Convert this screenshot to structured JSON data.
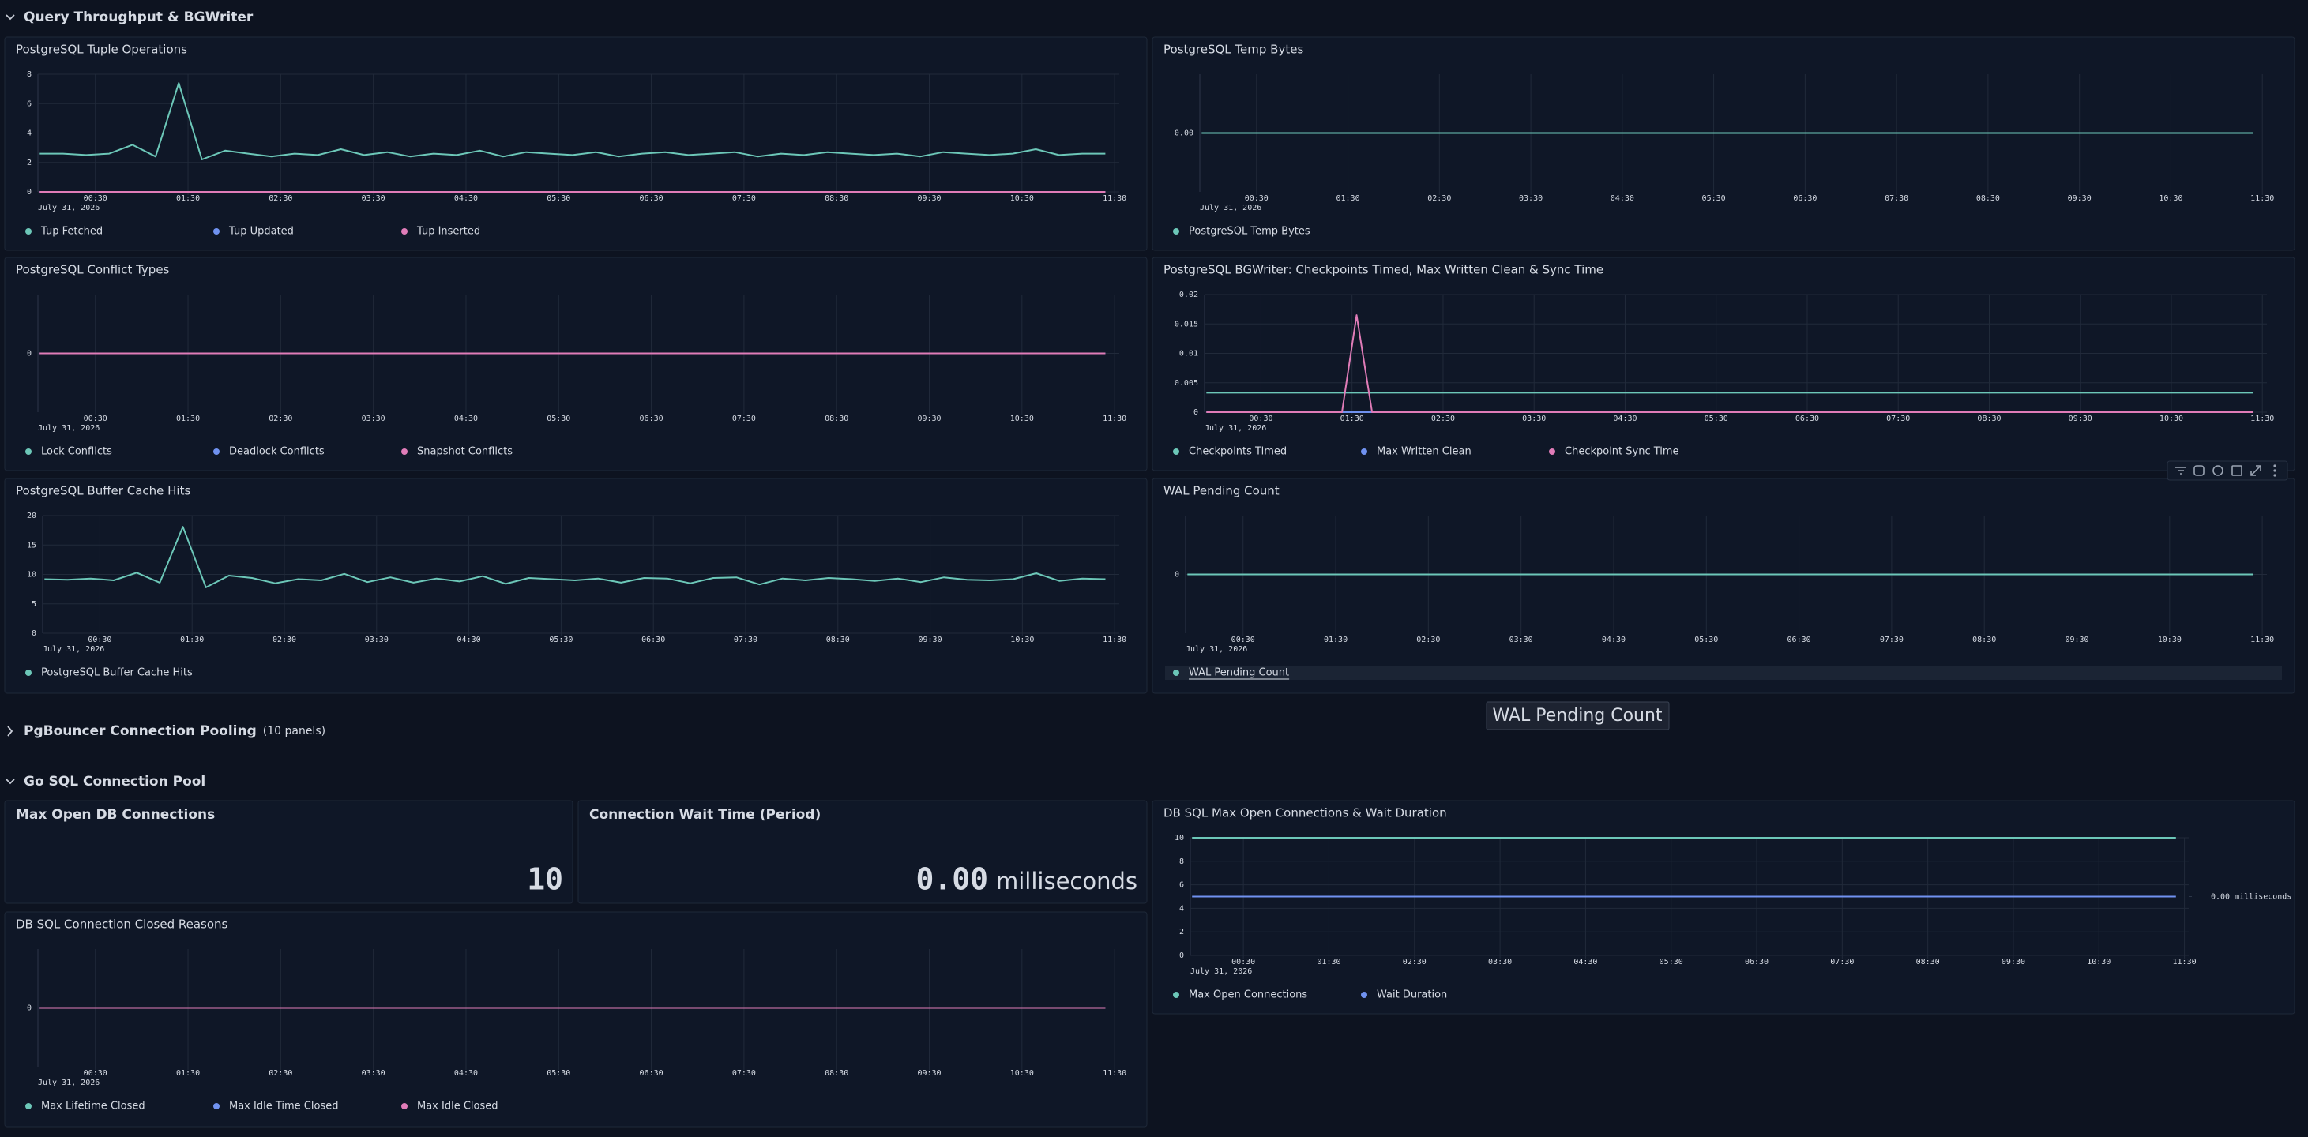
{
  "time_axis": {
    "xlim": [
      -0.12,
      11.55
    ],
    "xticks": [
      {
        "value": 0.5,
        "label": "00:30"
      },
      {
        "value": 1.5,
        "label": "01:30"
      },
      {
        "value": 2.5,
        "label": "02:30"
      },
      {
        "value": 3.5,
        "label": "03:30"
      },
      {
        "value": 4.5,
        "label": "04:30"
      },
      {
        "value": 5.5,
        "label": "05:30"
      },
      {
        "value": 6.5,
        "label": "06:30"
      },
      {
        "value": 7.5,
        "label": "07:30"
      },
      {
        "value": 8.5,
        "label": "08:30"
      },
      {
        "value": 9.5,
        "label": "09:30"
      },
      {
        "value": 10.5,
        "label": "10:30"
      },
      {
        "value": 11.5,
        "label": "11:30"
      }
    ],
    "date": "July 31, 2026"
  },
  "sections": [
    {
      "title": "Query Throughput & BGWriter",
      "expanded": true,
      "panels": [
        {
          "type": "timeseries",
          "title": "PostgreSQL Tuple Operations",
          "ylim": [
            0,
            8
          ],
          "yticks": [
            0,
            2,
            4,
            6,
            8
          ],
          "series": [
            {
              "name": "Tup Fetched",
              "color": "#6cc7b8",
              "x": [
                -0.1,
                0.15,
                0.4,
                0.65,
                0.9,
                1.15,
                1.4,
                1.65,
                1.9,
                2.15,
                2.4,
                2.65,
                2.9,
                3.15,
                3.4,
                3.65,
                3.9,
                4.15,
                4.4,
                4.65,
                4.9,
                5.15,
                5.4,
                5.65,
                5.9,
                6.15,
                6.4,
                6.65,
                6.9,
                7.15,
                7.4,
                7.65,
                7.9,
                8.15,
                8.4,
                8.65,
                8.9,
                9.15,
                9.4,
                9.65,
                9.9,
                10.15,
                10.4,
                10.65,
                10.9,
                11.15,
                11.4
              ],
              "values": [
                2.6,
                2.6,
                2.5,
                2.6,
                3.2,
                2.4,
                7.4,
                2.2,
                2.8,
                2.6,
                2.4,
                2.6,
                2.5,
                2.9,
                2.5,
                2.7,
                2.4,
                2.6,
                2.5,
                2.8,
                2.4,
                2.7,
                2.6,
                2.5,
                2.7,
                2.4,
                2.6,
                2.7,
                2.5,
                2.6,
                2.7,
                2.4,
                2.6,
                2.5,
                2.7,
                2.6,
                2.5,
                2.6,
                2.4,
                2.7,
                2.6,
                2.5,
                2.6,
                2.9,
                2.5,
                2.6,
                2.6
              ]
            },
            {
              "name": "Tup Updated",
              "color": "#7092f0",
              "x": [
                -0.1,
                11.4
              ],
              "values": [
                0,
                0
              ]
            },
            {
              "name": "Tup Inserted",
              "color": "#e07cb8",
              "x": [
                -0.1,
                11.4
              ],
              "values": [
                0,
                0
              ]
            }
          ]
        },
        {
          "type": "timeseries",
          "title": "PostgreSQL Temp Bytes",
          "ylim": [
            -1,
            1
          ],
          "yticks": [
            {
              "value": 0,
              "label": "0.00"
            }
          ],
          "series": [
            {
              "name": "PostgreSQL Temp Bytes",
              "color": "#6cc7b8",
              "x": [
                -0.1,
                11.4
              ],
              "values": [
                0,
                0
              ]
            }
          ]
        },
        {
          "type": "timeseries",
          "title": "PostgreSQL Conflict Types",
          "ylim": [
            -1,
            1
          ],
          "yticks": [
            0
          ],
          "series": [
            {
              "name": "Lock Conflicts",
              "color": "#6cc7b8",
              "x": [
                -0.1,
                11.4
              ],
              "values": [
                0,
                0
              ]
            },
            {
              "name": "Deadlock Conflicts",
              "color": "#7092f0",
              "x": [
                -0.1,
                11.4
              ],
              "values": [
                0,
                0
              ]
            },
            {
              "name": "Snapshot Conflicts",
              "color": "#e07cb8",
              "x": [
                -0.1,
                11.4
              ],
              "values": [
                0,
                0
              ]
            }
          ]
        },
        {
          "type": "timeseries",
          "title": "PostgreSQL BGWriter: Checkpoints Timed, Max Written Clean & Sync Time",
          "ylim": [
            0,
            0.02
          ],
          "yticks": [
            0,
            0.005,
            0.01,
            0.015,
            0.02
          ],
          "series": [
            {
              "name": "Checkpoints Timed",
              "color": "#6cc7b8",
              "x": [
                -0.1,
                11.4
              ],
              "values": [
                0.0033,
                0.0033
              ]
            },
            {
              "name": "Max Written Clean",
              "color": "#7092f0",
              "x": [
                -0.1,
                11.4
              ],
              "values": [
                0,
                0
              ]
            },
            {
              "name": "Checkpoint Sync Time",
              "color": "#e07cb8",
              "x": [
                -0.1,
                1.39,
                1.55,
                1.72,
                11.4
              ],
              "values": [
                0,
                0,
                0.0165,
                0,
                0
              ]
            }
          ]
        },
        {
          "type": "timeseries",
          "title": "PostgreSQL Buffer Cache Hits",
          "ylim": [
            0,
            20
          ],
          "yticks": [
            0,
            5,
            10,
            15,
            20
          ],
          "series": [
            {
              "name": "PostgreSQL Buffer Cache Hits",
              "color": "#6cc7b8",
              "x": [
                -0.1,
                0.15,
                0.4,
                0.65,
                0.9,
                1.15,
                1.4,
                1.65,
                1.9,
                2.15,
                2.4,
                2.65,
                2.9,
                3.15,
                3.4,
                3.65,
                3.9,
                4.15,
                4.4,
                4.65,
                4.9,
                5.15,
                5.4,
                5.65,
                5.9,
                6.15,
                6.4,
                6.65,
                6.9,
                7.15,
                7.4,
                7.65,
                7.9,
                8.15,
                8.4,
                8.65,
                8.9,
                9.15,
                9.4,
                9.65,
                9.9,
                10.15,
                10.4,
                10.65,
                10.9,
                11.15,
                11.4
              ],
              "values": [
                9.2,
                9.1,
                9.3,
                9.0,
                10.3,
                8.6,
                18.1,
                7.8,
                9.8,
                9.4,
                8.5,
                9.2,
                9.0,
                10.1,
                8.7,
                9.5,
                8.6,
                9.3,
                8.8,
                9.7,
                8.4,
                9.4,
                9.2,
                9.0,
                9.3,
                8.6,
                9.4,
                9.3,
                8.5,
                9.4,
                9.5,
                8.3,
                9.3,
                9.0,
                9.4,
                9.2,
                8.9,
                9.3,
                8.7,
                9.5,
                9.1,
                9.0,
                9.2,
                10.2,
                8.9,
                9.3,
                9.2
              ]
            }
          ]
        },
        {
          "type": "timeseries",
          "title": "WAL Pending Count",
          "ylim": [
            -1,
            1
          ],
          "yticks": [
            0
          ],
          "series": [
            {
              "name": "WAL Pending Count",
              "color": "#6cc7b8",
              "x": [
                -0.1,
                11.4
              ],
              "values": [
                0,
                0
              ]
            }
          ]
        }
      ]
    },
    {
      "title": "PgBouncer Connection Pooling",
      "panel_count_label": "(10 panels)",
      "expanded": false
    },
    {
      "title": "Go SQL Connection Pool",
      "expanded": true,
      "panels": [
        {
          "type": "stat",
          "title": "Max Open DB Connections",
          "value": 10
        },
        {
          "type": "stat",
          "title": "Connection Wait Time (Period)",
          "value": 0,
          "value_label": "0.00",
          "unit": "milliseconds"
        },
        {
          "type": "timeseries",
          "title": "DB SQL Max Open Connections & Wait Duration",
          "ylim": [
            0,
            10
          ],
          "yticks": [
            0,
            2,
            4,
            6,
            8,
            10
          ],
          "y2lim": [
            -1,
            1
          ],
          "y2ticks": [
            {
              "value": 0,
              "label": "0.00 milliseconds"
            }
          ],
          "series": [
            {
              "name": "Max Open Connections",
              "color": "#6cc7b8",
              "x": [
                -0.1,
                11.4
              ],
              "values": [
                10,
                10
              ]
            },
            {
              "name": "Wait Duration",
              "color": "#7092f0",
              "axis": "y2",
              "x": [
                -0.1,
                11.4
              ],
              "values": [
                0,
                0
              ]
            }
          ]
        },
        {
          "type": "timeseries",
          "title": "DB SQL Connection Closed Reasons",
          "ylim": [
            -1,
            1
          ],
          "yticks": [
            0
          ],
          "series": [
            {
              "name": "Max Lifetime Closed",
              "color": "#6cc7b8",
              "x": [
                -0.1,
                11.4
              ],
              "values": [
                0,
                0
              ]
            },
            {
              "name": "Max Idle Time Closed",
              "color": "#7092f0",
              "x": [
                -0.1,
                11.4
              ],
              "values": [
                0,
                0
              ]
            },
            {
              "name": "Max Idle Closed",
              "color": "#e07cb8",
              "x": [
                -0.1,
                11.4
              ],
              "values": [
                0,
                0
              ]
            }
          ]
        }
      ]
    }
  ]
}
